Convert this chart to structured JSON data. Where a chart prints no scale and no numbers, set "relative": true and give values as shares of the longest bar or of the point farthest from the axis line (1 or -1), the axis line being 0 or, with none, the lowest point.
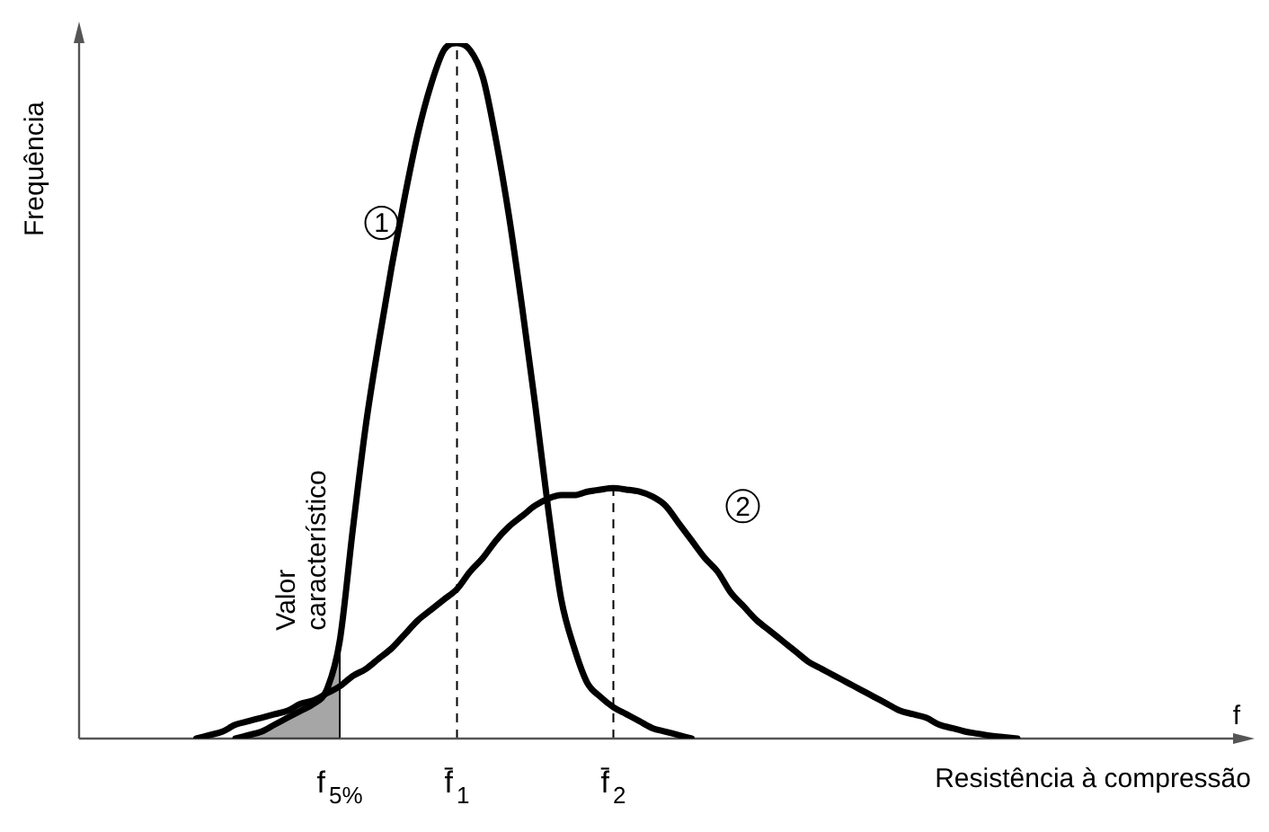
{
  "chart_data": {
    "type": "line",
    "relative": true,
    "xlabel": "Resistência à compressão",
    "ylabel": "Frequência",
    "grid": false,
    "legend": false,
    "marker": "none",
    "line_style": "solid",
    "categories": [
      null,
      null,
      null,
      null,
      null,
      null,
      null,
      null,
      null,
      null,
      null,
      null,
      null,
      null,
      null,
      null,
      null,
      null,
      null,
      null,
      "f$_{5%}$",
      null,
      null,
      null,
      null,
      null,
      null,
      null,
      null,
      "f̄$_{1}$",
      null,
      null,
      null,
      null,
      null,
      null,
      null,
      null,
      null,
      null,
      null,
      "f̄$_{2}$",
      null,
      null,
      null,
      null,
      null,
      null,
      null,
      null,
      null,
      null,
      null,
      null,
      null,
      null,
      null,
      null,
      null,
      null,
      null,
      null,
      null,
      null,
      null,
      null,
      null,
      null,
      null,
      null,
      null,
      null,
      null,
      null,
      null,
      null,
      null,
      null,
      null,
      null,
      null,
      null,
      null,
      null,
      null,
      null,
      null,
      null,
      null
    ],
    "series": [
      {
        "name": "1",
        "color": "#000000",
        "values": [
          null,
          null,
          null,
          null,
          null,
          null,
          null,
          null,
          null,
          null,
          null,
          null,
          0,
          0.005,
          0.01,
          0.02,
          0.03,
          0.04,
          0.05,
          0.07,
          0.14,
          0.3,
          0.45,
          0.57,
          0.68,
          0.78,
          0.87,
          0.94,
          0.99,
          1,
          0.99,
          0.95,
          0.86,
          0.75,
          0.62,
          0.48,
          0.33,
          0.2,
          0.13,
          0.08,
          0.06,
          0.045,
          0.035,
          0.025,
          0.015,
          0.01,
          0.005,
          0,
          null,
          null,
          null,
          null,
          null,
          null,
          null,
          null,
          null,
          null,
          null,
          null,
          null,
          null,
          null,
          null,
          null,
          null,
          null,
          null,
          null,
          null,
          null,
          null,
          null,
          null,
          null,
          null,
          null,
          null,
          null,
          null,
          null,
          null,
          null,
          null,
          null,
          null,
          null,
          null,
          null
        ]
      },
      {
        "name": "2",
        "color": "#000000",
        "values": [
          null,
          null,
          null,
          null,
          null,
          null,
          null,
          null,
          null,
          0,
          0.005,
          0.01,
          0.02,
          0.025,
          0.03,
          0.035,
          0.04,
          0.05,
          0.055,
          0.065,
          0.075,
          0.09,
          0.1,
          0.115,
          0.13,
          0.15,
          0.17,
          0.185,
          0.2,
          0.215,
          0.24,
          0.26,
          0.285,
          0.305,
          0.32,
          0.335,
          0.345,
          0.35,
          0.35,
          0.355,
          0.358,
          0.36,
          0.358,
          0.355,
          0.348,
          0.335,
          0.31,
          0.285,
          0.26,
          0.24,
          0.21,
          0.19,
          0.17,
          0.155,
          0.14,
          0.125,
          0.11,
          0.1,
          0.09,
          0.08,
          0.07,
          0.06,
          0.05,
          0.04,
          0.035,
          0.03,
          0.02,
          0.015,
          0.01,
          0.007,
          0.004,
          0.002,
          0,
          null,
          null,
          null,
          null,
          null,
          null,
          null,
          null,
          null,
          null,
          null,
          null,
          null,
          null,
          null,
          null
        ]
      },
      {
        "type": "area",
        "color": "#000000",
        "values": [
          null,
          null,
          null,
          null,
          null,
          null,
          null,
          null,
          null,
          null,
          null,
          null,
          0,
          0.005,
          0.01,
          0.02,
          0.03,
          0.04,
          0.05,
          0.07,
          0.14,
          null,
          null,
          null,
          null,
          null,
          null,
          null,
          null,
          null,
          null,
          null,
          null,
          null,
          null,
          null,
          null,
          null,
          null,
          null,
          null,
          null,
          null,
          null,
          null,
          null,
          null,
          null,
          null,
          null,
          null,
          null,
          null,
          null,
          null,
          null,
          null,
          null,
          null,
          null,
          null,
          null,
          null,
          null,
          null,
          null,
          null,
          null,
          null,
          null,
          null,
          null,
          null,
          null,
          null,
          null,
          null,
          null,
          null,
          null,
          null,
          null,
          null,
          null,
          null,
          null,
          null,
          null,
          null
        ]
      }
    ],
    "ref_lines": [
      {
        "axis": "x",
        "value": "f̄$_{1}$",
        "line_style": "dashed",
        "color": "#000000"
      },
      {
        "axis": "x",
        "value": "f̄$_{2}$",
        "line_style": "dashed",
        "color": "#000000"
      }
    ],
    "annotations": [
      {
        "text": "Valor característico",
        "x": "f$_{5%}$",
        "y": 0.14
      },
      "f"
    ]
  }
}
